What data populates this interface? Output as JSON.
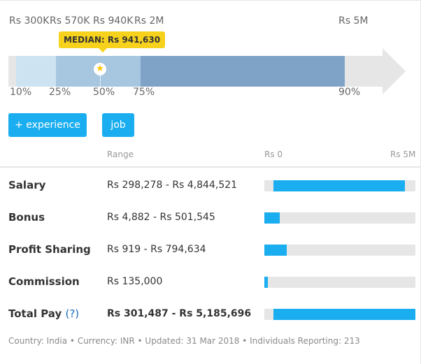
{
  "distribution": {
    "top_labels": [
      "Rs 300K",
      "Rs 570K",
      "Rs 940K",
      "Rs 2M",
      "Rs 5M"
    ],
    "bottom_labels": [
      "10%",
      "25%",
      "50%",
      "75%",
      "90%"
    ],
    "median_label": "MEDIAN: Rs 941,630",
    "colors": {
      "p10_p25": "#cde3f2",
      "p25_p75": "#a7c6e0",
      "p75_p90": "#7ea3c7",
      "track": "#e6e6e6",
      "accent": "#f6d21d"
    }
  },
  "buttons": {
    "experience_label": "+ experience",
    "job_label": "job"
  },
  "table": {
    "col_range": "Range",
    "col_min": "Rs 0",
    "col_max": "Rs 5M",
    "rows": [
      {
        "label": "Salary",
        "range": "Rs 298,278 - Rs 4,844,521",
        "fill_start": 0.06,
        "fill_end": 0.93
      },
      {
        "label": "Bonus",
        "range": "Rs 4,882 - Rs 501,545",
        "fill_start": 0.0,
        "fill_end": 0.1
      },
      {
        "label": "Profit Sharing",
        "range": "Rs 919 - Rs 794,634",
        "fill_start": 0.0,
        "fill_end": 0.15
      },
      {
        "label": "Commission",
        "range": "Rs 135,000",
        "fill_start": 0.0,
        "fill_end": 0.025
      },
      {
        "label": "Total Pay",
        "help": "(?)",
        "range": "Rs 301,487 - Rs 5,185,696",
        "fill_start": 0.06,
        "fill_end": 1.0
      }
    ]
  },
  "footer": "Country: India • Currency: INR • Updated: 31 Mar 2018 • Individuals Reporting: 213",
  "accent_color": "#1aaef0"
}
